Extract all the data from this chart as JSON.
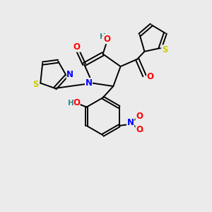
{
  "bg_color": "#ebebeb",
  "atom_colors": {
    "O": "#ff0000",
    "N": "#0000ff",
    "S": "#cccc00",
    "C": "#000000",
    "H": "#2e8b8b"
  },
  "lw": 1.4,
  "fs": 8.5
}
